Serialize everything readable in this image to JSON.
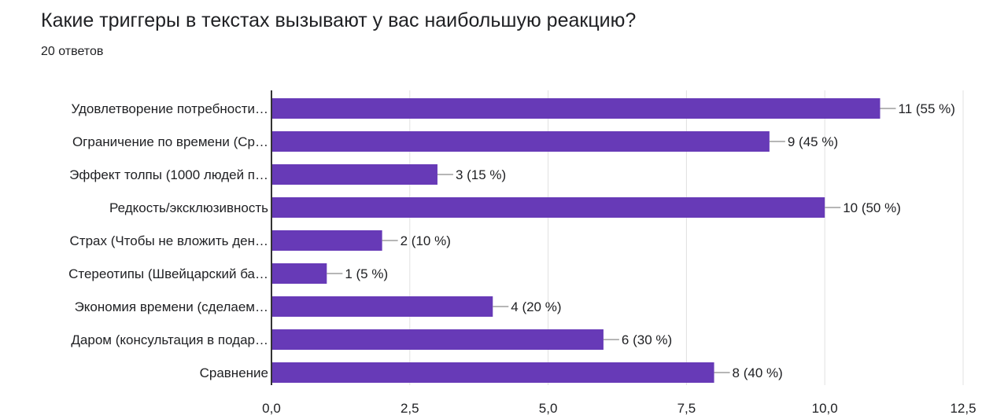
{
  "question": {
    "title": "Какие триггеры в текстах вызывают у вас наибольшую реакцию?",
    "response_count": "20 ответов"
  },
  "colors": {
    "bar": "#673ab7",
    "grid": "#e0e0e0",
    "axis": "#333333",
    "leader": "#9e9e9e",
    "text": "#202124"
  },
  "chart_data": {
    "type": "bar",
    "orientation": "horizontal",
    "categories": [
      "Удовлетворение потребности…",
      "Ограничение по времени (Ср…",
      "Эффект толпы (1000 людей п…",
      "Редкость/эксклюзивность",
      "Страх (Чтобы не вложить ден…",
      "Стереотипы (Швейцарский ба…",
      "Экономия времени (сделаем…",
      "Даром (консультация в подар…",
      "Сравнение"
    ],
    "values": [
      11,
      9,
      3,
      10,
      2,
      1,
      4,
      6,
      8
    ],
    "data_labels": [
      "11 (55 %)",
      "9 (45 %)",
      "3 (15 %)",
      "10 (50 %)",
      "2 (10 %)",
      "1 (5 %)",
      "4 (20 %)",
      "6 (30 %)",
      "8 (40 %)"
    ],
    "xlim": [
      0,
      12.5
    ],
    "xticks": [
      0,
      2.5,
      5,
      7.5,
      10,
      12.5
    ],
    "xtick_labels": [
      "0,0",
      "2,5",
      "5,0",
      "7,5",
      "10,0",
      "12,5"
    ],
    "grid": true,
    "legend": "none"
  }
}
